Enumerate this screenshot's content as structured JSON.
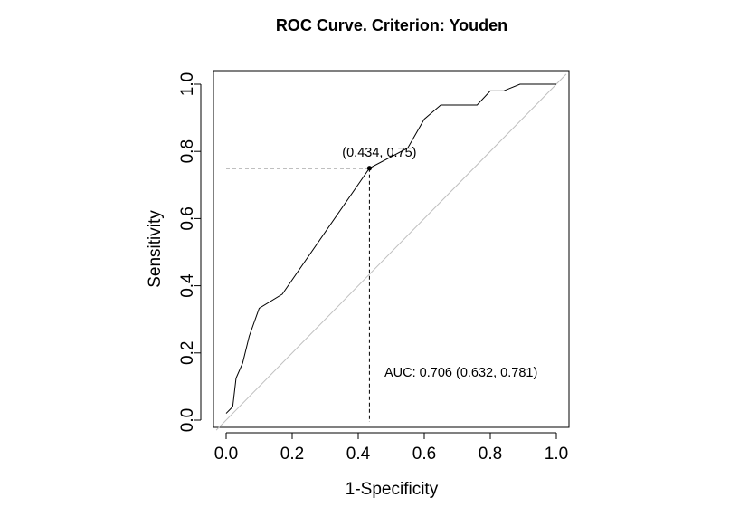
{
  "chart_data": {
    "type": "line",
    "title": "ROC Curve. Criterion: Youden",
    "xlabel": "1-Specificity",
    "ylabel": "Sensitivity",
    "xlim": [
      0.0,
      1.0
    ],
    "ylim": [
      0.0,
      1.0
    ],
    "xticks": [
      "0.0",
      "0.2",
      "0.4",
      "0.6",
      "0.8",
      "1.0"
    ],
    "yticks": [
      "0.0",
      "0.2",
      "0.4",
      "0.6",
      "0.8",
      "1.0"
    ],
    "grid": false,
    "series": [
      {
        "x": [
          0.0,
          0.02,
          0.03,
          0.05,
          0.07,
          0.1,
          0.17,
          0.434,
          0.55,
          0.6,
          0.65,
          0.7,
          0.76,
          0.8,
          0.84,
          0.89,
          1.0
        ],
        "y": [
          0.02,
          0.04,
          0.125,
          0.17,
          0.25,
          0.333,
          0.375,
          0.75,
          0.81,
          0.896,
          0.938,
          0.938,
          0.938,
          0.98,
          0.98,
          1.0,
          1.0
        ],
        "color": "#000000"
      }
    ],
    "reference_line": {
      "x": [
        -0.03,
        1.03
      ],
      "y": [
        -0.03,
        1.03
      ],
      "color": "#bfbfbf"
    },
    "optimal_point": {
      "x": 0.434,
      "y": 0.75,
      "label": "(0.434, 0.75)"
    },
    "auc_label": "AUC: 0.706 (0.632, 0.781)"
  }
}
